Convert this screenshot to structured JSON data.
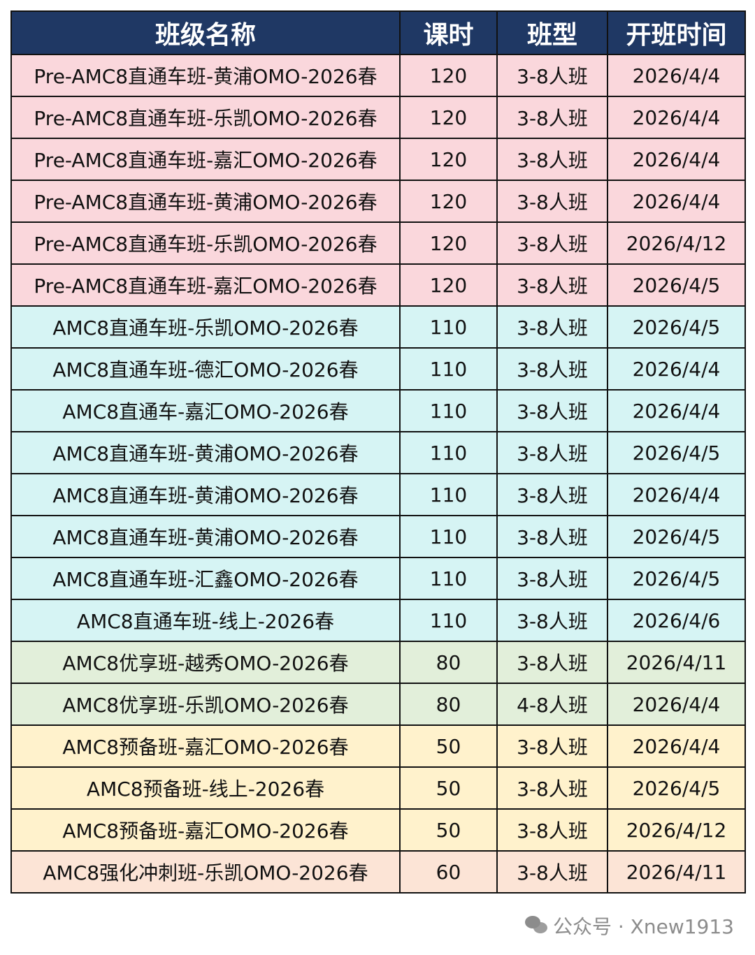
{
  "colors": {
    "header": "#1f3864",
    "pre": "#fad7dc",
    "direct": "#d6f4f4",
    "premium": "#e2efda",
    "prep": "#fff2cc",
    "sprint": "#fce4d6"
  },
  "table": {
    "headers": [
      "班级名称",
      "课时",
      "班型",
      "开班时间"
    ],
    "rows": [
      {
        "group": "pre",
        "cells": [
          "Pre-AMC8直通车班-黄浦OMO-2026春",
          "120",
          "3-8人班",
          "2026/4/4"
        ]
      },
      {
        "group": "pre",
        "cells": [
          "Pre-AMC8直通车班-乐凯OMO-2026春",
          "120",
          "3-8人班",
          "2026/4/4"
        ]
      },
      {
        "group": "pre",
        "cells": [
          "Pre-AMC8直通车班-嘉汇OMO-2026春",
          "120",
          "3-8人班",
          "2026/4/4"
        ]
      },
      {
        "group": "pre",
        "cells": [
          "Pre-AMC8直通车班-黄浦OMO-2026春",
          "120",
          "3-8人班",
          "2026/4/4"
        ]
      },
      {
        "group": "pre",
        "cells": [
          "Pre-AMC8直通车班-乐凯OMO-2026春",
          "120",
          "3-8人班",
          "2026/4/12"
        ]
      },
      {
        "group": "pre",
        "cells": [
          "Pre-AMC8直通车班-嘉汇OMO-2026春",
          "120",
          "3-8人班",
          "2026/4/5"
        ]
      },
      {
        "group": "direct",
        "cells": [
          "AMC8直通车班-乐凯OMO-2026春",
          "110",
          "3-8人班",
          "2026/4/5"
        ]
      },
      {
        "group": "direct",
        "cells": [
          "AMC8直通车班-德汇OMO-2026春",
          "110",
          "3-8人班",
          "2026/4/4"
        ]
      },
      {
        "group": "direct",
        "cells": [
          "AMC8直通车-嘉汇OMO-2026春",
          "110",
          "3-8人班",
          "2026/4/4"
        ]
      },
      {
        "group": "direct",
        "cells": [
          "AMC8直通车班-黄浦OMO-2026春",
          "110",
          "3-8人班",
          "2026/4/5"
        ]
      },
      {
        "group": "direct",
        "cells": [
          "AMC8直通车班-黄浦OMO-2026春",
          "110",
          "3-8人班",
          "2026/4/4"
        ]
      },
      {
        "group": "direct",
        "cells": [
          "AMC8直通车班-黄浦OMO-2026春",
          "110",
          "3-8人班",
          "2026/4/5"
        ]
      },
      {
        "group": "direct",
        "cells": [
          "AMC8直通车班-汇鑫OMO-2026春",
          "110",
          "3-8人班",
          "2026/4/5"
        ]
      },
      {
        "group": "direct",
        "cells": [
          "AMC8直通车班-线上-2026春",
          "110",
          "3-8人班",
          "2026/4/6"
        ]
      },
      {
        "group": "premium",
        "cells": [
          "AMC8优享班-越秀OMO-2026春",
          "80",
          "3-8人班",
          "2026/4/11"
        ]
      },
      {
        "group": "premium",
        "cells": [
          "AMC8优享班-乐凯OMO-2026春",
          "80",
          "4-8人班",
          "2026/4/4"
        ]
      },
      {
        "group": "prep",
        "cells": [
          "AMC8预备班-嘉汇OMO-2026春",
          "50",
          "3-8人班",
          "2026/4/4"
        ]
      },
      {
        "group": "prep",
        "cells": [
          "AMC8预备班-线上-2026春",
          "50",
          "3-8人班",
          "2026/4/5"
        ]
      },
      {
        "group": "prep",
        "cells": [
          "AMC8预备班-嘉汇OMO-2026春",
          "50",
          "3-8人班",
          "2026/4/12"
        ]
      },
      {
        "group": "sprint",
        "cells": [
          "AMC8强化冲刺班-乐凯OMO-2026春",
          "60",
          "3-8人班",
          "2026/4/11"
        ]
      }
    ]
  },
  "watermark": {
    "text": "公众号 · Xnew1913",
    "icon": "wechat-icon"
  }
}
